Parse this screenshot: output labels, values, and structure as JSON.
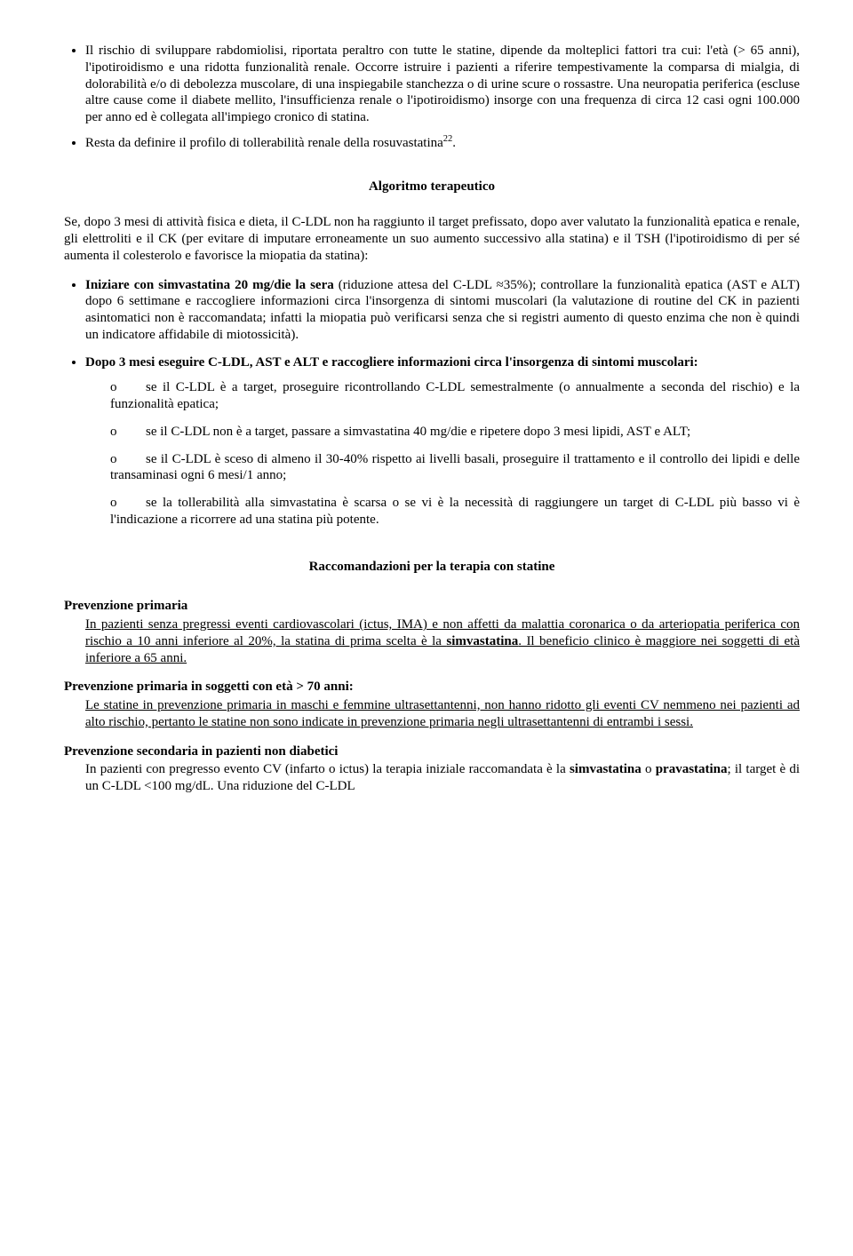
{
  "bullets": [
    {
      "text_parts": [
        {
          "t": "Il rischio di sviluppare rabdomiolisi, riportata peraltro con tutte le statine, dipende da molteplici fattori tra cui: l'età (> 65 anni), l'ipotiroidismo e una ridotta funzionalità renale. Occorre istruire i pazienti a riferire tempestivamente la comparsa di mialgia, di dolorabilità e/o di debolezza muscolare, di una inspiegabile stanchezza o di urine scure o rossastre. Una neuropatia periferica (escluse altre cause come il diabete mellito, l'insufficienza renale o l'ipotiroidismo) insorge con una frequenza di circa 12 casi ogni 100.000 per anno ed è collegata all'impiego cronico di statina."
        }
      ]
    },
    {
      "text_parts": [
        {
          "t": "Resta da definire il profilo di tollerabilità renale della rosuvastatina"
        },
        {
          "t": "22",
          "sup": true
        },
        {
          "t": "."
        }
      ]
    }
  ],
  "algo_title": "Algoritmo terapeutico",
  "algo_intro": "Se, dopo 3 mesi di attività fisica e dieta, il C-LDL non ha raggiunto il target prefissato, dopo aver valutato la funzionalità epatica e renale, gli elettroliti e il CK (per evitare di imputare erroneamente un suo aumento successivo alla statina) e il TSH (l'ipotiroidismo di per sé aumenta il colesterolo e favorisce la miopatia da statina):",
  "algo_items": [
    {
      "lead_bold": "Iniziare con simvastatina 20 mg/die la sera",
      "rest": " (riduzione attesa del C-LDL ≈35%); controllare la funzionalità epatica (AST e ALT) dopo 6 settimane e raccogliere informazioni circa l'insorgenza di sintomi muscolari (la valutazione di routine del CK in pazienti asintomatici non è raccomandata; infatti la miopatia può verificarsi senza che si registri aumento di questo enzima che non è quindi un indicatore affidabile di miotossicità)."
    },
    {
      "lead_bold": "Dopo 3 mesi eseguire C-LDL, AST e ALT e raccogliere informazioni circa l'insorgenza di sintomi muscolari:",
      "rest": "",
      "subs": [
        "se il C-LDL è a target, proseguire ricontrollando C-LDL semestralmente (o annualmente a seconda del rischio) e la funzionalità epatica;",
        "se il C-LDL non è a target, passare a simvastatina 40 mg/die e ripetere dopo 3 mesi lipidi, AST e ALT;",
        "se il C-LDL è sceso di almeno il 30-40% rispetto ai livelli basali, proseguire il trattamento e il controllo dei lipidi e delle transaminasi ogni 6 mesi/1 anno;",
        "se la tollerabilità alla simvastatina è scarsa o se vi è la necessità di raggiungere un target di C-LDL più basso vi è l'indicazione a ricorrere ad una statina più potente."
      ]
    }
  ],
  "sub_marker": "o",
  "recc_title": "Raccomandazioni per la terapia con statine",
  "prevention": [
    {
      "head": "Prevenzione primaria",
      "body_segments": [
        {
          "t": "In pazienti senza pregressi eventi cardiovascolari (ictus, IMA) e non affetti da malattia coronarica o da arteriopatia periferica con rischio a 10 anni inferiore al 20%, la statina di prima scelta è la ",
          "u": true
        },
        {
          "t": "simvastatina",
          "u": true,
          "b": true
        },
        {
          "t": ". Il beneficio clinico è maggiore nei soggetti di età inferiore a 65 anni.",
          "u": true
        }
      ]
    },
    {
      "head": "Prevenzione primaria in soggetti con età > 70 anni:",
      "body_segments": [
        {
          "t": "Le statine in prevenzione primaria in maschi e femmine ultrasettantenni, non hanno ridotto gli eventi CV nemmeno nei pazienti ad alto rischio, pertanto le statine non sono indicate in prevenzione primaria negli ultrasettantenni di entrambi i sessi.",
          "u": true
        }
      ]
    },
    {
      "head": "Prevenzione secondaria in pazienti non diabetici",
      "body_segments": [
        {
          "t": "In pazienti con pregresso evento CV (infarto o ictus) la terapia iniziale raccomandata è la "
        },
        {
          "t": "simvastatina",
          "b": true
        },
        {
          "t": " o "
        },
        {
          "t": "pravastatina",
          "b": true
        },
        {
          "t": "; il target è di un C-LDL <100 mg/dL. Una riduzione del C-LDL"
        }
      ]
    }
  ]
}
